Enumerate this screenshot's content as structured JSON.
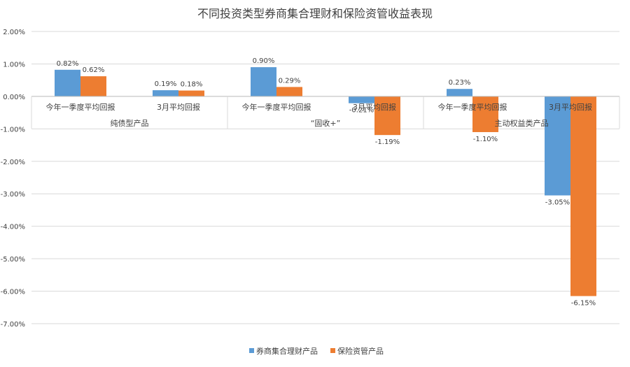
{
  "chart_data": {
    "type": "bar",
    "title": "不同投资类型券商集合理财和保险资管收益表现",
    "groups": [
      {
        "label": "纯债型产品",
        "categories": [
          "今年一季度平均回报",
          "3月平均回报"
        ]
      },
      {
        "label": "“固收+”",
        "categories": [
          "今年一季度平均回报",
          "3月平均回报"
        ]
      },
      {
        "label": "主动权益类产品",
        "categories": [
          "今年一季度平均回报",
          "3月平均回报"
        ]
      }
    ],
    "series": [
      {
        "name": "券商集合理财产品",
        "color": "#5B9BD5",
        "values": [
          0.82,
          0.19,
          0.9,
          -0.21,
          0.23,
          -3.05
        ],
        "labels": [
          "0.82%",
          "0.19%",
          "0.90%",
          "-0.21%",
          "0.23%",
          "-3.05%"
        ]
      },
      {
        "name": "保险资管产品",
        "color": "#ED7D31",
        "values": [
          0.62,
          0.18,
          0.29,
          -1.19,
          -1.1,
          -6.15
        ],
        "labels": [
          "0.62%",
          "0.18%",
          "0.29%",
          "-1.19%",
          "-1.10%",
          "-6.15%"
        ]
      }
    ],
    "ylim": [
      -7,
      2
    ],
    "yticks": [
      "2.00%",
      "1.00%",
      "0.00%",
      "-1.00%",
      "-2.00%",
      "-3.00%",
      "-4.00%",
      "-5.00%",
      "-6.00%",
      "-7.00%"
    ],
    "grid": true,
    "legend_position": "bottom"
  }
}
